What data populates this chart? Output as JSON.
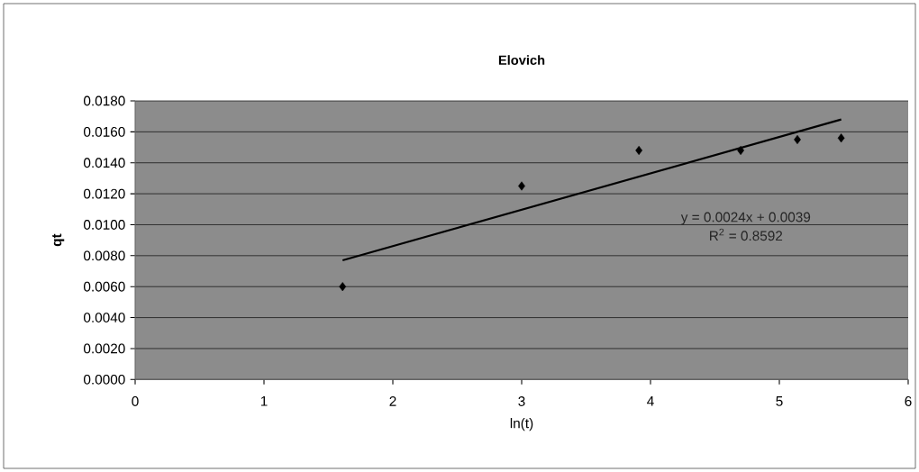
{
  "chart_data": {
    "type": "scatter",
    "title": "Elovich",
    "xlabel": "ln(t)",
    "ylabel": "qt",
    "series": [
      {
        "color": "#000000",
        "marker": "diamond",
        "x": [
          1.61,
          3.0,
          3.91,
          4.7,
          5.14,
          5.48
        ],
        "values": [
          0.006,
          0.0125,
          0.0148,
          0.0148,
          0.0155,
          0.0156
        ]
      },
      {
        "type": "line",
        "color": "#000000",
        "marker": "none",
        "line_style": "solid",
        "x": [
          1.61,
          5.48
        ],
        "values": [
          0.0077,
          0.0168
        ]
      }
    ],
    "xlim": [
      0,
      6
    ],
    "xticks": [
      0,
      1,
      2,
      3,
      4,
      5,
      6
    ],
    "ylim": [
      0,
      0.018
    ],
    "yticks": [
      {
        "value": 0,
        "label": "0.0000"
      },
      {
        "value": 0.002,
        "label": "0.0020"
      },
      {
        "value": 0.004,
        "label": "0.0040"
      },
      {
        "value": 0.006,
        "label": "0.0060"
      },
      {
        "value": 0.008,
        "label": "0.0080"
      },
      {
        "value": 0.01,
        "label": "0.0100"
      },
      {
        "value": 0.012,
        "label": "0.0120"
      },
      {
        "value": 0.014,
        "label": "0.0140"
      },
      {
        "value": 0.016,
        "label": "0.0160"
      },
      {
        "value": 0.018,
        "label": "0.0180"
      }
    ],
    "grid": "y",
    "annotations": [
      "y = 0.0024x + 0.0039",
      "R$^{2}$ = 0.8592"
    ]
  }
}
